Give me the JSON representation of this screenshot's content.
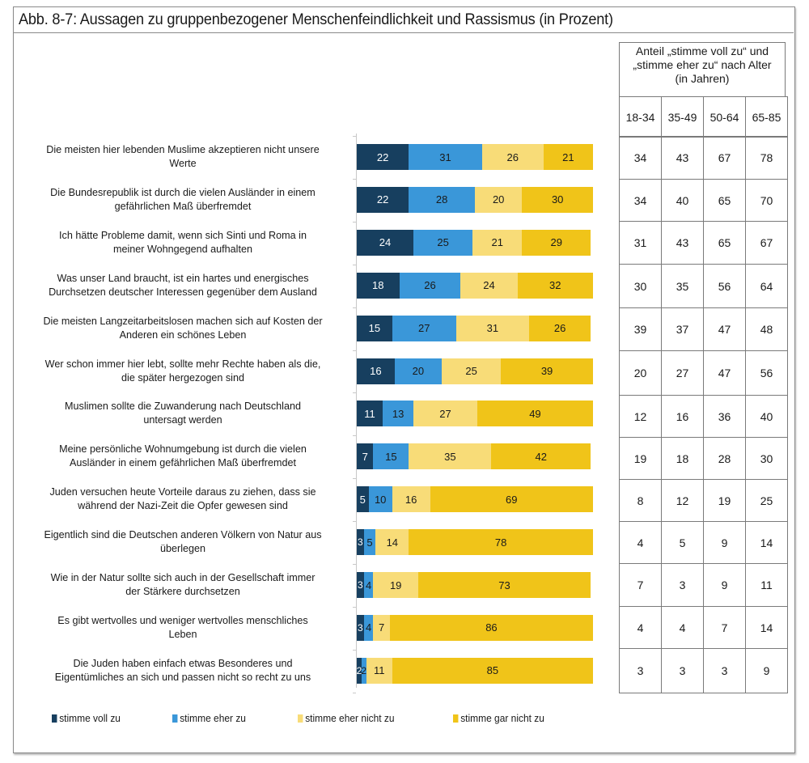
{
  "header": {
    "title": "Abb. 8-7:  Aussagen zu gruppenbezogener Menschenfeindlichkeit und Rassismus (in Prozent)"
  },
  "colors": {
    "stimme_voll_zu": "#173f5f",
    "stimme_eher_zu": "#3a97d9",
    "stimme_eher_nicht_zu": "#f8dc78",
    "stimme_gar_nicht_zu": "#f0c419",
    "label_dark_bg": "#ffffff",
    "label_light_bg": "#1a1a1a"
  },
  "age_table": {
    "header_line1": "Anteil „stimme voll zu“ und",
    "header_line2": "„stimme eher zu“ nach Alter",
    "header_line3": "(in Jahren)",
    "age_groups": [
      "18-34",
      "35-49",
      "50-64",
      "65-85"
    ],
    "rows": [
      [
        34,
        43,
        67,
        78
      ],
      [
        34,
        40,
        65,
        70
      ],
      [
        31,
        43,
        65,
        67
      ],
      [
        30,
        35,
        56,
        64
      ],
      [
        39,
        37,
        47,
        48
      ],
      [
        20,
        27,
        47,
        56
      ],
      [
        12,
        16,
        36,
        40
      ],
      [
        19,
        18,
        28,
        30
      ],
      [
        8,
        12,
        19,
        25
      ],
      [
        4,
        5,
        9,
        14
      ],
      [
        7,
        3,
        9,
        11
      ],
      [
        4,
        4,
        7,
        14
      ],
      [
        3,
        3,
        3,
        9
      ]
    ]
  },
  "chart_data": {
    "type": "bar",
    "orientation": "horizontal",
    "stacked": true,
    "title": "Abb. 8-7:  Aussagen zu gruppenbezogener Menschenfeindlichkeit und Rassismus (in Prozent)",
    "xlabel": "",
    "ylabel": "",
    "xlim": [
      0,
      100
    ],
    "grid": false,
    "legend_position": "bottom",
    "categories": [
      [
        "Die meisten hier lebenden Muslime akzeptieren nicht unsere",
        "Werte"
      ],
      [
        "Die Bundesrepublik ist durch die vielen Ausländer in einem",
        "gefährlichen Maß überfremdet"
      ],
      [
        "Ich hätte Probleme damit, wenn sich Sinti und Roma in",
        "meiner Wohngegend aufhalten"
      ],
      [
        "Was unser Land braucht, ist ein hartes und energisches",
        "Durchsetzen deutscher Interessen gegenüber dem Ausland"
      ],
      [
        "Die meisten Langzeitarbeitslosen machen sich auf Kosten der",
        "Anderen ein schönes Leben"
      ],
      [
        "Wer schon immer hier lebt, sollte mehr Rechte haben als die,",
        "die später hergezogen sind"
      ],
      [
        "Muslimen sollte die Zuwanderung nach Deutschland",
        "untersagt werden"
      ],
      [
        "Meine persönliche Wohnumgebung ist durch die vielen",
        "Ausländer in einem gefährlichen Maß überfremdet"
      ],
      [
        "Juden versuchen heute Vorteile daraus zu ziehen, dass sie",
        "während der Nazi-Zeit die Opfer gewesen sind"
      ],
      [
        "Eigentlich sind die Deutschen anderen Völkern von Natur aus",
        "überlegen"
      ],
      [
        "Wie in der Natur sollte sich auch in der Gesellschaft immer",
        "der Stärkere durchsetzen"
      ],
      [
        "Es gibt wertvolles und weniger wertvolles menschliches",
        "Leben"
      ],
      [
        "Die Juden haben einfach etwas Besonderes und",
        "Eigentümliches an sich und passen nicht so recht zu uns"
      ]
    ],
    "series": [
      {
        "name": "stimme voll zu",
        "color_key": "stimme_voll_zu",
        "values": [
          22,
          22,
          24,
          18,
          15,
          16,
          11,
          7,
          5,
          3,
          3,
          3,
          2
        ]
      },
      {
        "name": "stimme eher zu",
        "color_key": "stimme_eher_zu",
        "values": [
          31,
          28,
          25,
          26,
          27,
          20,
          13,
          15,
          10,
          5,
          4,
          4,
          2
        ]
      },
      {
        "name": "stimme eher nicht zu",
        "color_key": "stimme_eher_nicht_zu",
        "values": [
          26,
          20,
          21,
          24,
          31,
          25,
          27,
          35,
          16,
          14,
          19,
          7,
          11
        ]
      },
      {
        "name": "stimme gar nicht zu",
        "color_key": "stimme_gar_nicht_zu",
        "values": [
          21,
          30,
          29,
          32,
          26,
          39,
          49,
          42,
          69,
          78,
          73,
          86,
          85
        ]
      }
    ]
  }
}
